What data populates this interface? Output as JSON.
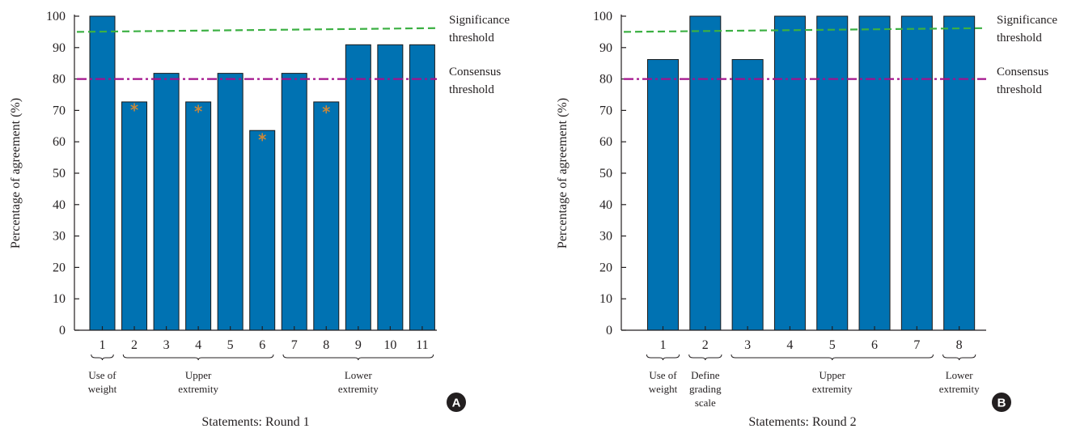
{
  "chart_data": [
    {
      "panel": "A",
      "type": "bar",
      "categories": [
        "1",
        "2",
        "3",
        "4",
        "5",
        "6",
        "7",
        "8",
        "9",
        "10",
        "11"
      ],
      "values": [
        100,
        72.7,
        81.8,
        72.7,
        81.8,
        63.6,
        81.8,
        72.7,
        90.9,
        90.9,
        90.9
      ],
      "marked_categories": [
        "2",
        "4",
        "6",
        "8"
      ],
      "marker_y": [
        71,
        70.5,
        61.5,
        70.3
      ],
      "xlabel": "Statements: Round 1",
      "ylabel": "Percentage of agreement (%)",
      "ylim": [
        0,
        100
      ],
      "yticks": [
        0,
        10,
        20,
        30,
        40,
        50,
        60,
        70,
        80,
        90,
        100
      ],
      "groups": [
        {
          "lines": [
            "Use of",
            "weight"
          ],
          "from": 0,
          "to": 0
        },
        {
          "lines": [
            "Upper",
            "extremity"
          ],
          "from": 1,
          "to": 5
        },
        {
          "lines": [
            "Lower",
            "extremity"
          ],
          "from": 6,
          "to": 10
        }
      ],
      "reference_lines": [
        {
          "label_lines": [
            "Significance",
            "threshold"
          ],
          "y_start": 95,
          "y_end": 96.2,
          "style": "dashed",
          "color": "#3cb043"
        },
        {
          "label_lines": [
            "Consensus",
            "threshold"
          ],
          "y_start": 80,
          "y_end": 80,
          "style": "dash-dot",
          "color": "#a3128c"
        }
      ],
      "bar_color": "#0072b2",
      "marker_color": "#c8883a",
      "grid": false
    },
    {
      "panel": "B",
      "type": "bar",
      "categories": [
        "1",
        "2",
        "3",
        "4",
        "5",
        "6",
        "7",
        "8"
      ],
      "values": [
        86.2,
        100,
        86.2,
        100,
        100,
        100,
        100,
        100
      ],
      "marked_categories": [],
      "marker_y": [],
      "xlabel": "Statements: Round 2",
      "ylabel": "Percentage of agreement (%)",
      "ylim": [
        0,
        100
      ],
      "yticks": [
        0,
        10,
        20,
        30,
        40,
        50,
        60,
        70,
        80,
        90,
        100
      ],
      "groups": [
        {
          "lines": [
            "Use of",
            "weight"
          ],
          "from": 0,
          "to": 0
        },
        {
          "lines": [
            "Define",
            "grading",
            "scale"
          ],
          "from": 1,
          "to": 1
        },
        {
          "lines": [
            "Upper",
            "extremity"
          ],
          "from": 2,
          "to": 6
        },
        {
          "lines": [
            "Lower",
            "extremity"
          ],
          "from": 7,
          "to": 7
        }
      ],
      "reference_lines": [
        {
          "label_lines": [
            "Significance",
            "threshold"
          ],
          "y_start": 95,
          "y_end": 96.2,
          "style": "dashed",
          "color": "#3cb043"
        },
        {
          "label_lines": [
            "Consensus",
            "threshold"
          ],
          "y_start": 80,
          "y_end": 80,
          "style": "dash-dot",
          "color": "#a3128c"
        }
      ],
      "bar_color": "#0072b2",
      "marker_color": "#c8883a",
      "grid": false
    }
  ]
}
